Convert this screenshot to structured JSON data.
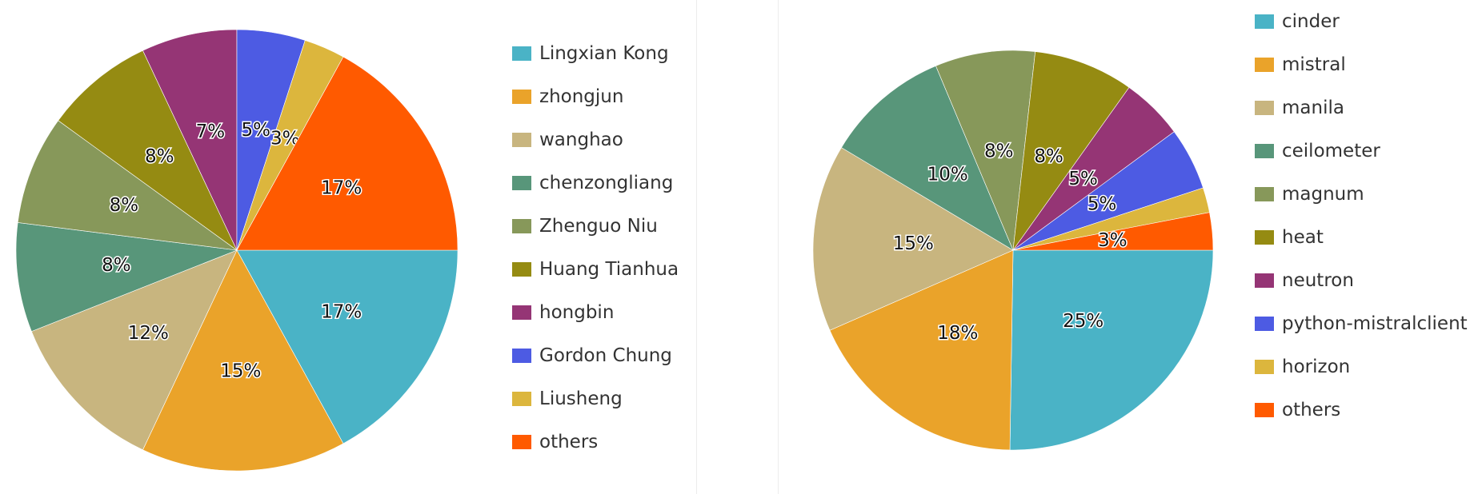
{
  "colors": [
    "#4ab3c6",
    "#eaa32a",
    "#c8b57f",
    "#58967a",
    "#87985a",
    "#958b12",
    "#953575",
    "#4d5be3",
    "#dcb63d",
    "#ff5a00"
  ],
  "chart_data": [
    {
      "type": "pie",
      "title": "",
      "categories": [
        "Lingxian Kong",
        "zhongjun",
        "wanghao",
        "chenzongliang",
        "Zhenguo Niu",
        "Huang Tianhua",
        "hongbin",
        "Gordon Chung",
        "Liusheng",
        "others"
      ],
      "values": [
        17,
        15,
        12,
        8,
        8,
        8,
        7,
        5,
        3,
        17
      ],
      "labels": [
        "17%",
        "15%",
        "12%",
        "8%",
        "8%",
        "8%",
        "7%",
        "5%",
        "3%",
        "17%"
      ],
      "legend_position": "right"
    },
    {
      "type": "pie",
      "title": "",
      "categories": [
        "cinder",
        "mistral",
        "manila",
        "ceilometer",
        "magnum",
        "heat",
        "neutron",
        "python-mistralclient",
        "horizon",
        "others"
      ],
      "values": [
        25,
        18,
        15,
        10,
        8,
        8,
        5,
        5,
        2,
        3
      ],
      "labels": [
        "25%",
        "18%",
        "15%",
        "10%",
        "8%",
        "8%",
        "5%",
        "5%",
        "",
        "3%"
      ],
      "legend_position": "right"
    }
  ]
}
